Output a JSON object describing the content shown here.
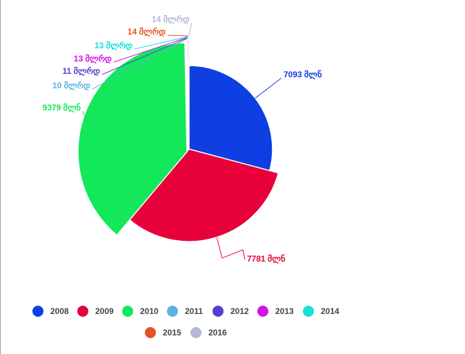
{
  "chart_data": {
    "type": "pie",
    "categories": [
      "2008",
      "2009",
      "2010",
      "2011",
      "2012",
      "2013",
      "2014",
      "2015",
      "2016"
    ],
    "values": [
      7093,
      7781,
      9379,
      10,
      11,
      13,
      13,
      14,
      14
    ],
    "value_labels": [
      "7093 მლნ",
      "7781 მლნ",
      "9379 მლნ",
      "10 მლრდ",
      "11 მლრდ",
      "13 მლრდ",
      "13 მლრდ",
      "14 მლრდ",
      "14 მლრდ"
    ],
    "colors": [
      "#0e3fe2",
      "#e8003a",
      "#12e85a",
      "#5cb0e2",
      "#5540d0",
      "#d212e8",
      "#14e2d2",
      "#e25422",
      "#b2b8d6"
    ],
    "legend": "bottom"
  }
}
